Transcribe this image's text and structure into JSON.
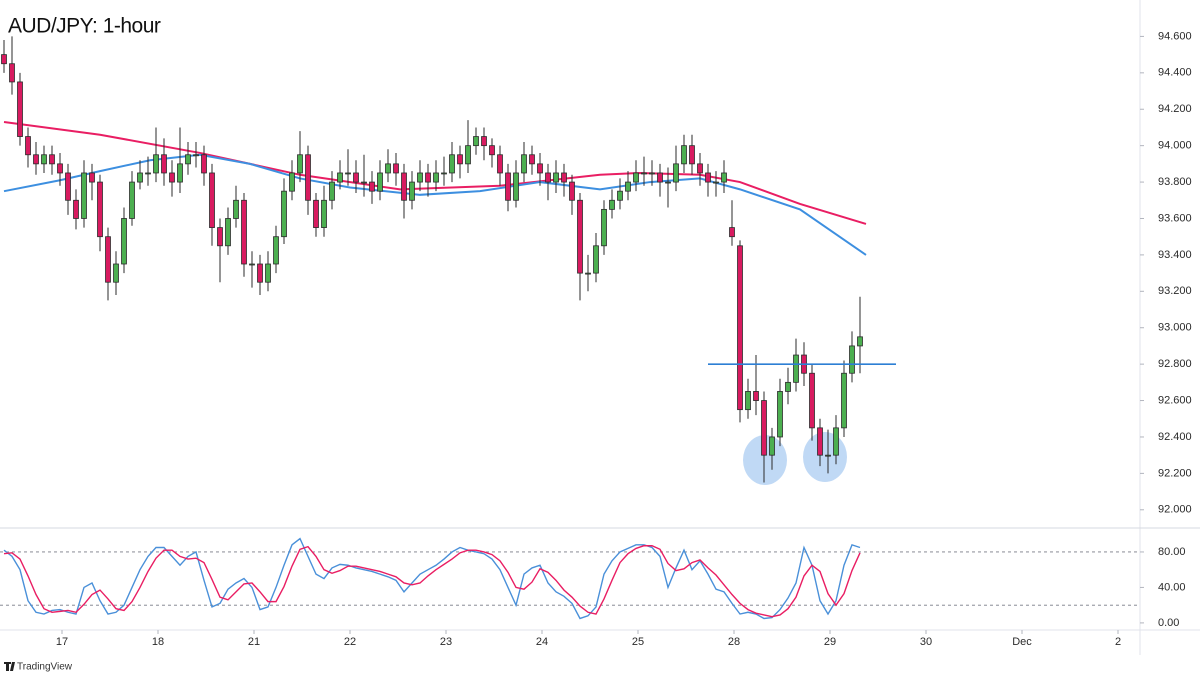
{
  "chart_data": [
    {
      "type": "candlestick",
      "title": "AUD/JPY: 1-hour",
      "up_color": "#4caf50",
      "down_color": "#d81b60",
      "outline_color": "#2b2b2b",
      "x": [
        0,
        2,
        4,
        6,
        8,
        10,
        12,
        14,
        16,
        18,
        20,
        22,
        24,
        26,
        28,
        30,
        32,
        34,
        36,
        38,
        40,
        42,
        44,
        46,
        48,
        50,
        52,
        54,
        56,
        58,
        60,
        62,
        64,
        66,
        68,
        70,
        72,
        74,
        76,
        78,
        80,
        82,
        84,
        86,
        88,
        90,
        92,
        94,
        96,
        98,
        100,
        102,
        104,
        106,
        108,
        110,
        112,
        114,
        116,
        118,
        120,
        122,
        124,
        126,
        128,
        130,
        132,
        134,
        136,
        138,
        140,
        142,
        144,
        146,
        148,
        150,
        152,
        154,
        156,
        158,
        160,
        162,
        164,
        166,
        168,
        170,
        172,
        174,
        176,
        178,
        180,
        182,
        184,
        186,
        188,
        190,
        192,
        194,
        196,
        198,
        200,
        202,
        204,
        206,
        208,
        210,
        212,
        214
      ],
      "open": [
        94.5,
        94.45,
        94.35,
        94.05,
        93.95,
        93.9,
        93.95,
        93.9,
        93.85,
        93.7,
        93.6,
        93.85,
        93.8,
        93.5,
        93.25,
        93.35,
        93.6,
        93.8,
        93.85,
        93.85,
        93.95,
        93.85,
        93.8,
        93.9,
        93.95,
        93.95,
        93.85,
        93.55,
        93.45,
        93.6,
        93.7,
        93.35,
        93.35,
        93.25,
        93.35,
        93.5,
        93.75,
        93.85,
        93.95,
        93.7,
        93.55,
        93.7,
        93.8,
        93.85,
        93.85,
        93.8,
        93.8,
        93.75,
        93.85,
        93.9,
        93.85,
        93.7,
        93.8,
        93.85,
        93.8,
        93.85,
        93.85,
        93.95,
        93.9,
        94.0,
        94.05,
        94.0,
        93.95,
        93.85,
        93.7,
        93.85,
        93.95,
        93.9,
        93.85,
        93.8,
        93.85,
        93.8,
        93.7,
        93.3,
        93.3,
        93.45,
        93.65,
        93.7,
        93.75,
        93.8,
        93.85,
        93.85,
        93.85,
        93.8,
        93.8,
        93.9,
        94.0,
        93.9,
        93.85,
        93.8,
        93.8,
        93.55,
        93.45,
        92.55,
        92.65,
        92.6,
        92.3,
        92.4,
        92.65,
        92.7,
        92.85,
        92.75,
        92.45,
        92.3,
        92.3,
        92.45,
        92.75,
        92.9
      ],
      "high": [
        94.58,
        94.6,
        94.4,
        94.1,
        94.02,
        94.0,
        94.0,
        93.96,
        93.9,
        93.76,
        93.92,
        93.9,
        93.84,
        93.55,
        93.42,
        93.66,
        93.86,
        93.92,
        93.94,
        94.1,
        94.04,
        93.92,
        94.1,
        94.02,
        94.02,
        94.0,
        93.9,
        93.6,
        93.66,
        93.78,
        93.74,
        93.42,
        93.4,
        93.42,
        93.56,
        93.82,
        93.92,
        94.08,
        94.0,
        93.74,
        93.78,
        93.86,
        93.92,
        93.98,
        93.92,
        93.95,
        93.86,
        93.92,
        93.98,
        93.96,
        93.9,
        93.86,
        93.92,
        93.9,
        93.92,
        93.94,
        94.02,
        94.0,
        94.14,
        94.1,
        94.1,
        94.04,
        94.0,
        93.9,
        93.92,
        94.02,
        94.0,
        93.96,
        93.9,
        93.92,
        93.9,
        93.84,
        93.74,
        93.4,
        93.52,
        93.7,
        93.76,
        93.82,
        93.86,
        93.92,
        93.94,
        93.92,
        93.9,
        93.88,
        94.0,
        94.06,
        94.06,
        93.96,
        93.9,
        93.86,
        93.92,
        93.7,
        93.48,
        92.72,
        92.85,
        92.65,
        92.45,
        92.72,
        92.78,
        92.94,
        92.92,
        92.8,
        92.5,
        92.44,
        92.52,
        92.82,
        92.98,
        93.17
      ],
      "low": [
        94.4,
        94.28,
        94.0,
        93.88,
        93.84,
        93.85,
        93.84,
        93.78,
        93.62,
        93.54,
        93.55,
        93.7,
        93.42,
        93.15,
        93.18,
        93.3,
        93.56,
        93.76,
        93.78,
        93.8,
        93.78,
        93.72,
        93.74,
        93.84,
        93.88,
        93.78,
        93.45,
        93.25,
        93.4,
        93.55,
        93.28,
        93.22,
        93.18,
        93.2,
        93.3,
        93.46,
        93.7,
        93.8,
        93.62,
        93.5,
        93.5,
        93.65,
        93.76,
        93.78,
        93.74,
        93.72,
        93.68,
        93.7,
        93.8,
        93.78,
        93.6,
        93.65,
        93.75,
        93.72,
        93.75,
        93.78,
        93.8,
        93.82,
        93.85,
        93.95,
        93.92,
        93.88,
        93.78,
        93.64,
        93.66,
        93.8,
        93.84,
        93.78,
        93.7,
        93.74,
        93.72,
        93.62,
        93.15,
        93.2,
        93.25,
        93.4,
        93.6,
        93.65,
        93.7,
        93.75,
        93.78,
        93.78,
        93.72,
        93.66,
        93.75,
        93.85,
        93.84,
        93.78,
        93.72,
        93.72,
        93.74,
        93.45,
        92.48,
        92.5,
        92.52,
        92.15,
        92.22,
        92.35,
        92.58,
        92.65,
        92.68,
        92.38,
        92.24,
        92.2,
        92.25,
        92.4,
        92.7,
        92.75
      ],
      "close": [
        94.45,
        94.35,
        94.05,
        93.95,
        93.9,
        93.95,
        93.9,
        93.85,
        93.7,
        93.6,
        93.85,
        93.8,
        93.5,
        93.25,
        93.35,
        93.6,
        93.8,
        93.85,
        93.85,
        93.95,
        93.85,
        93.8,
        93.9,
        93.95,
        93.95,
        93.85,
        93.55,
        93.45,
        93.6,
        93.7,
        93.35,
        93.35,
        93.25,
        93.35,
        93.5,
        93.75,
        93.85,
        93.95,
        93.7,
        93.55,
        93.7,
        93.8,
        93.85,
        93.85,
        93.8,
        93.8,
        93.75,
        93.85,
        93.9,
        93.85,
        93.7,
        93.8,
        93.85,
        93.8,
        93.85,
        93.85,
        93.95,
        93.9,
        94.0,
        94.05,
        94.0,
        93.95,
        93.85,
        93.7,
        93.85,
        93.95,
        93.9,
        93.85,
        93.8,
        93.85,
        93.8,
        93.7,
        93.3,
        93.3,
        93.45,
        93.65,
        93.7,
        93.75,
        93.8,
        93.85,
        93.85,
        93.85,
        93.8,
        93.8,
        93.9,
        94.0,
        93.9,
        93.85,
        93.8,
        93.8,
        93.85,
        93.5,
        92.55,
        92.65,
        92.6,
        92.3,
        92.4,
        92.65,
        92.7,
        92.85,
        92.75,
        92.45,
        92.3,
        92.3,
        92.45,
        92.75,
        92.9,
        92.95
      ],
      "overlays": [
        {
          "color": "#e91e63",
          "x": [
            0,
            24,
            49,
            74,
            99,
            124,
            149,
            159,
            174,
            184,
            199,
            215.5
          ],
          "values": [
            94.13,
            94.06,
            93.96,
            93.84,
            93.76,
            93.78,
            93.84,
            93.85,
            93.84,
            93.8,
            93.68,
            93.57
          ]
        },
        {
          "color": "#3d8fe0",
          "x": [
            0,
            14,
            24,
            36.5,
            49,
            61.5,
            74,
            86.5,
            104,
            119,
            134,
            149,
            161.5,
            174,
            184,
            199,
            215.5
          ],
          "values": [
            93.75,
            93.81,
            93.86,
            93.92,
            93.95,
            93.9,
            93.82,
            93.77,
            93.73,
            93.75,
            93.8,
            93.76,
            93.8,
            93.82,
            93.76,
            93.65,
            93.4
          ]
        }
      ],
      "hline": {
        "value": 92.8,
        "x": [
          176,
          223
        ],
        "color": "#2d7fd4"
      },
      "xlim": [
        -1,
        284
      ],
      "xticks": [
        {
          "value": 14.5,
          "label": "17"
        },
        {
          "value": 38.5,
          "label": "18"
        },
        {
          "value": 62.5,
          "label": "21"
        },
        {
          "value": 86.5,
          "label": "22"
        },
        {
          "value": 110.5,
          "label": "23"
        },
        {
          "value": 134.5,
          "label": "24"
        },
        {
          "value": 158.5,
          "label": "25"
        },
        {
          "value": 182.5,
          "label": "28"
        },
        {
          "value": 206.5,
          "label": "29"
        },
        {
          "value": 230.5,
          "label": "30"
        },
        {
          "value": 254.5,
          "label": "Dec"
        },
        {
          "value": 278.5,
          "label": "2"
        }
      ],
      "ylim": [
        91.9,
        94.8
      ],
      "yticks": [
        {
          "value": 92,
          "label": "92.000"
        },
        {
          "value": 92.2,
          "label": "92.200"
        },
        {
          "value": 92.4,
          "label": "92.400"
        },
        {
          "value": 92.6,
          "label": "92.600"
        },
        {
          "value": 92.8,
          "label": "92.800"
        },
        {
          "value": 93,
          "label": "93.000"
        },
        {
          "value": 93.2,
          "label": "93.200"
        },
        {
          "value": 93.4,
          "label": "93.400"
        },
        {
          "value": 93.6,
          "label": "93.600"
        },
        {
          "value": 93.8,
          "label": "93.800"
        },
        {
          "value": 94,
          "label": "94.000"
        },
        {
          "value": 94.2,
          "label": "94.200"
        },
        {
          "value": 94.4,
          "label": "94.400"
        },
        {
          "value": 94.6,
          "label": "94.600"
        }
      ],
      "grid": false
    },
    {
      "type": "line",
      "series": [
        {
          "color": "#4a90d9",
          "values": [
            82,
            75,
            60,
            25,
            12,
            10,
            14,
            15,
            12,
            10,
            40,
            45,
            25,
            10,
            12,
            20,
            40,
            60,
            75,
            85,
            85,
            75,
            65,
            75,
            80,
            48,
            18,
            22,
            38,
            45,
            50,
            40,
            15,
            18,
            40,
            65,
            88,
            95,
            75,
            55,
            50,
            62,
            66,
            65,
            62,
            60,
            58,
            55,
            52,
            48,
            35,
            45,
            55,
            60,
            65,
            72,
            80,
            85,
            82,
            80,
            78,
            72,
            60,
            40,
            20,
            55,
            62,
            65,
            45,
            35,
            30,
            22,
            5,
            8,
            18,
            55,
            70,
            80,
            84,
            88,
            88,
            85,
            75,
            40,
            62,
            82,
            60,
            70,
            55,
            38,
            35,
            22,
            10,
            12,
            10,
            5,
            6,
            15,
            28,
            45,
            85,
            65,
            25,
            10,
            25,
            65,
            88,
            85
          ]
        },
        {
          "color": "#e91e63",
          "values": [
            78,
            79,
            72,
            53,
            32,
            16,
            12,
            13,
            14,
            12,
            21,
            32,
            37,
            27,
            16,
            14,
            24,
            40,
            58,
            73,
            82,
            82,
            75,
            72,
            73,
            68,
            49,
            29,
            26,
            35,
            44,
            45,
            35,
            24,
            24,
            41,
            64,
            83,
            86,
            75,
            60,
            56,
            59,
            64,
            64,
            62,
            60,
            58,
            55,
            52,
            45,
            43,
            45,
            53,
            60,
            66,
            72,
            79,
            82,
            82,
            80,
            77,
            70,
            57,
            40,
            38,
            46,
            61,
            57,
            48,
            37,
            29,
            19,
            12,
            10,
            27,
            48,
            68,
            78,
            84,
            87,
            87,
            83,
            67,
            59,
            61,
            68,
            71,
            62,
            54,
            43,
            32,
            22,
            15,
            11,
            9,
            7,
            9,
            16,
            29,
            53,
            65,
            58,
            33,
            20,
            33,
            59,
            79
          ]
        }
      ],
      "bands": [
        20,
        80
      ],
      "ylim": [
        -8,
        107
      ],
      "yticks": [
        {
          "value": 0,
          "label": "0.00"
        },
        {
          "value": 40,
          "label": "40.00"
        },
        {
          "value": 80,
          "label": "80.00"
        }
      ]
    }
  ],
  "footer": "TradingView"
}
